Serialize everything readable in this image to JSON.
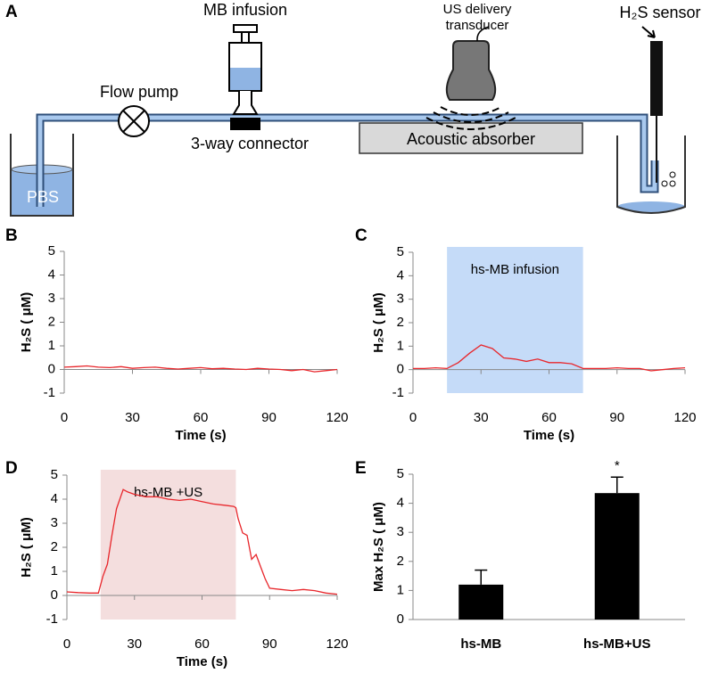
{
  "diagram": {
    "panel": "A",
    "syringe_label": "MB infusion",
    "pump_label": "Flow pump",
    "connector_label": "3-way connector",
    "transducer_label": [
      "US delivery",
      "transducer"
    ],
    "sensor_label": "H₂S sensor",
    "absorber_label": "Acoustic absorber",
    "reservoir_label": "PBS"
  },
  "chart_data": [
    {
      "type": "line",
      "panel": "B",
      "xlabel": "Time (s)",
      "ylabel": "H₂S ( μM)",
      "color": "#e8262b",
      "x": [
        0,
        5,
        10,
        15,
        20,
        25,
        30,
        35,
        40,
        45,
        50,
        55,
        60,
        65,
        70,
        75,
        80,
        85,
        90,
        95,
        100,
        105,
        110,
        115,
        120
      ],
      "values": [
        0.1,
        0.12,
        0.15,
        0.1,
        0.08,
        0.12,
        0.05,
        0.08,
        0.1,
        0.05,
        0.02,
        0.05,
        0.08,
        0.03,
        0.05,
        0.02,
        0.0,
        0.05,
        0.02,
        0.0,
        -0.05,
        0.0,
        -0.1,
        -0.05,
        0.0
      ],
      "xlim": [
        0,
        120
      ],
      "xticks": [
        0,
        30,
        60,
        90,
        120
      ],
      "ylim": [
        -1,
        5
      ],
      "yticks": [
        -1,
        0,
        1,
        2,
        3,
        4,
        5
      ]
    },
    {
      "type": "line",
      "panel": "C",
      "xlabel": "Time (s)",
      "ylabel": "H₂S ( μM)",
      "color": "#e8262b",
      "shade": {
        "x": [
          15,
          75
        ],
        "label": "hs-MB infusion",
        "color": "#c5dbf8"
      },
      "x": [
        0,
        5,
        10,
        15,
        20,
        25,
        30,
        35,
        40,
        45,
        50,
        55,
        60,
        65,
        70,
        75,
        80,
        85,
        90,
        95,
        100,
        105,
        110,
        115,
        120
      ],
      "values": [
        0.05,
        0.05,
        0.08,
        0.05,
        0.3,
        0.7,
        1.05,
        0.9,
        0.5,
        0.45,
        0.35,
        0.45,
        0.3,
        0.3,
        0.25,
        0.05,
        0.05,
        0.05,
        0.08,
        0.05,
        0.05,
        -0.05,
        0.0,
        0.05,
        0.08
      ],
      "xlim": [
        0,
        120
      ],
      "xticks": [
        0,
        30,
        60,
        90,
        120
      ],
      "ylim": [
        -1,
        5
      ],
      "yticks": [
        -1,
        0,
        1,
        2,
        3,
        4,
        5
      ]
    },
    {
      "type": "line",
      "panel": "D",
      "xlabel": "Time (s)",
      "ylabel": "H₂S ( μM)",
      "color": "#e8262b",
      "shade": {
        "x": [
          15,
          75
        ],
        "label": "hs-MB +US",
        "color": "#f4dede"
      },
      "x": [
        0,
        5,
        10,
        14,
        16,
        18,
        20,
        22,
        25,
        27,
        30,
        35,
        40,
        45,
        50,
        55,
        60,
        65,
        70,
        74,
        75,
        76,
        78,
        80,
        82,
        84,
        86,
        88,
        90,
        95,
        100,
        105,
        110,
        115,
        120
      ],
      "values": [
        0.15,
        0.12,
        0.1,
        0.1,
        0.8,
        1.3,
        2.5,
        3.6,
        4.4,
        4.3,
        4.2,
        4.1,
        4.1,
        4.0,
        3.95,
        4.0,
        3.9,
        3.8,
        3.75,
        3.7,
        3.65,
        3.2,
        2.6,
        2.5,
        1.5,
        1.7,
        1.2,
        0.7,
        0.3,
        0.25,
        0.2,
        0.25,
        0.2,
        0.1,
        0.05
      ],
      "xlim": [
        0,
        120
      ],
      "xticks": [
        0,
        30,
        60,
        90,
        120
      ],
      "ylim": [
        -1,
        5
      ],
      "yticks": [
        -1,
        0,
        1,
        2,
        3,
        4,
        5
      ]
    },
    {
      "type": "bar",
      "panel": "E",
      "ylabel": "Max H₂S ( μM)",
      "color": "#000000",
      "categories": [
        "hs-MB",
        "hs-MB+US"
      ],
      "values": [
        1.2,
        4.35
      ],
      "errors": [
        0.5,
        0.55
      ],
      "annotation": "*",
      "ylim": [
        0,
        5
      ],
      "yticks": [
        0,
        1,
        2,
        3,
        4,
        5
      ]
    }
  ]
}
